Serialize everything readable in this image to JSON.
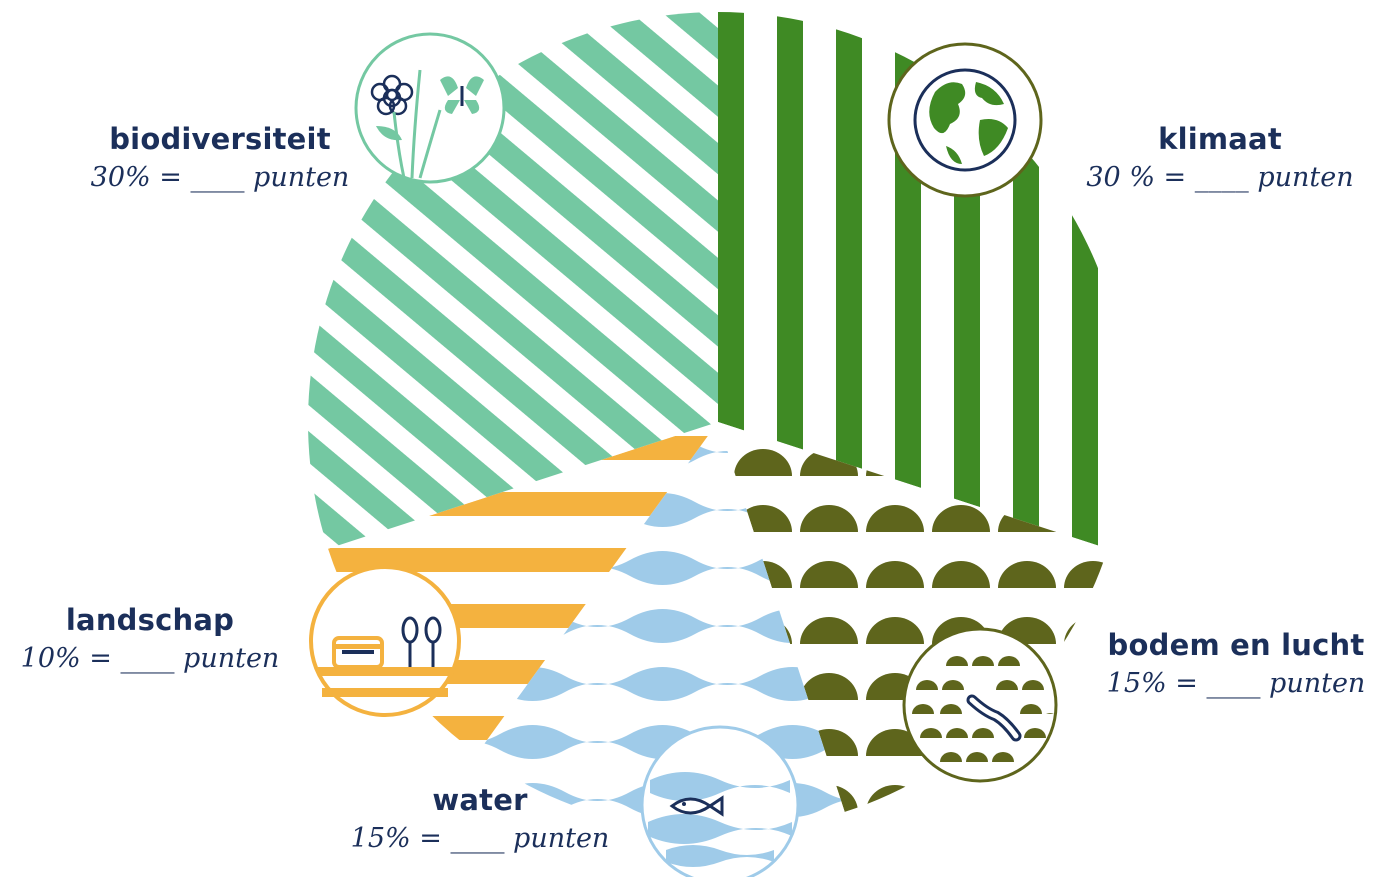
{
  "chart_data": {
    "type": "pie",
    "slices": [
      {
        "key": "biodiversiteit",
        "label": "biodiversiteit",
        "value": 30,
        "score_text": "30% = ____ punten",
        "color": "#74c8a2",
        "pattern": "diagonal-stripes",
        "icon": "flower-butterfly-icon"
      },
      {
        "key": "klimaat",
        "label": "klimaat",
        "value": 30,
        "score_text": "30 % = ____ punten",
        "color": "#3f8a24",
        "pattern": "vertical-stripes",
        "icon": "globe-icon"
      },
      {
        "key": "bodem",
        "label": "bodem en lucht",
        "value": 15,
        "score_text": "15% = ____ punten",
        "color": "#5e651c",
        "pattern": "half-circles",
        "icon": "worm-icon"
      },
      {
        "key": "water",
        "label": "water",
        "value": 15,
        "score_text": "15% = ____ punten",
        "color": "#9fcbe9",
        "pattern": "waves",
        "icon": "fish-icon"
      },
      {
        "key": "landschap",
        "label": "landschap",
        "value": 10,
        "score_text": "10% = ____ punten",
        "color": "#f4b23f",
        "pattern": "horizontal-stripes",
        "icon": "landscape-icon"
      }
    ]
  },
  "colors": {
    "label_text": "#1b2f5a",
    "icon_line": "#1b2f5a"
  }
}
